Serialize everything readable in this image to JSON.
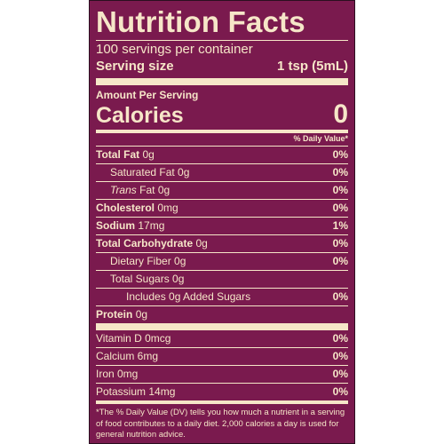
{
  "label": {
    "title": "Nutrition Facts",
    "servings_per_container": "100 servings per container",
    "serving_size_label": "Serving size",
    "serving_size_value": "1 tsp (5mL)",
    "amount_per_serving": "Amount Per Serving",
    "calories_label": "Calories",
    "calories_value": "0",
    "daily_value_header": "% Daily Value*",
    "total_fat_label": "Total Fat",
    "total_fat_amount": "0g",
    "total_fat_dv": "0%",
    "saturated_fat": "Saturated Fat 0g",
    "saturated_fat_dv": "0%",
    "trans_label": "Trans",
    "trans_rest": "Fat 0g",
    "trans_fat_dv": "0%",
    "cholesterol_label": "Cholesterol",
    "cholesterol_amount": "0mg",
    "cholesterol_dv": "0%",
    "sodium_label": "Sodium",
    "sodium_amount": "17mg",
    "sodium_dv": "1%",
    "total_carb_label": "Total Carbohydrate",
    "total_carb_amount": "0g",
    "total_carb_dv": "0%",
    "dietary_fiber": "Dietary Fiber 0g",
    "dietary_fiber_dv": "0%",
    "total_sugars": "Total Sugars 0g",
    "added_sugars": "Includes 0g Added Sugars",
    "added_sugars_dv": "0%",
    "protein_label": "Protein",
    "protein_amount": "0g",
    "vitamin_d": "Vitamin D 0mcg",
    "vitamin_d_dv": "0%",
    "calcium": "Calcium 6mg",
    "calcium_dv": "0%",
    "iron": "Iron 0mg",
    "iron_dv": "0%",
    "potassium": "Potassium 14mg",
    "potassium_dv": "0%",
    "footnote": "*The % Daily Value (DV) tells you how much a nutrient in a serving of food contributes to a daily diet. 2,000 calories a day is used for general nutrition advice."
  },
  "colors": {
    "panel_background": "#7a1a4e",
    "text_and_rules": "#f6e6c8"
  }
}
